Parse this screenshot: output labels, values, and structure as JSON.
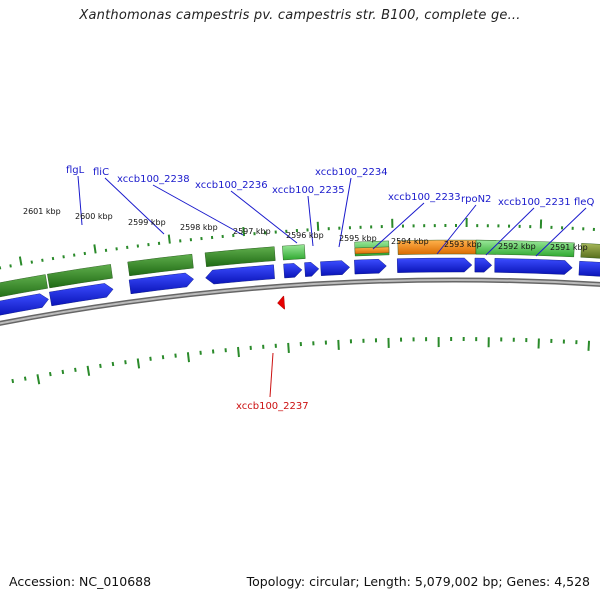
{
  "title": "Xanthomonas campestris pv. campestris str. B100, complete ge...",
  "footer": {
    "accession": "Accession: NC_010688",
    "stats": "Topology: circular; Length: 5,079,002 bp; Genes: 4,528"
  },
  "tick_labels": [
    "2601 kbp",
    "2600 kbp",
    "2599 kbp",
    "2598 kbp",
    "2597 kbp",
    "2596 kbp",
    "2595 kbp",
    "2594 kbp",
    "2593 kbp",
    "2592 kbp",
    "2591 kbp"
  ],
  "gene_labels_plus": [
    "flgL",
    "fliC",
    "xccb100_2238",
    "xccb100_2236",
    "xccb100_2235",
    "xccb100_2234",
    "xccb100_2233",
    "rpoN2",
    "xccb100_2231",
    "fleQ"
  ],
  "gene_labels_minus": [
    "xccb100_2237"
  ],
  "colors": {
    "cds_blue": "#0a1ee6",
    "feature_green_dark": "#2e8b1e",
    "feature_green_light": "#44cc44",
    "feature_orange": "#ff8c00",
    "feature_olive": "#6b8e23",
    "backbone": "#888888",
    "tick": "#2a8a2a",
    "label_plus": "#1a1acc",
    "label_minus": "#cc1111"
  }
}
